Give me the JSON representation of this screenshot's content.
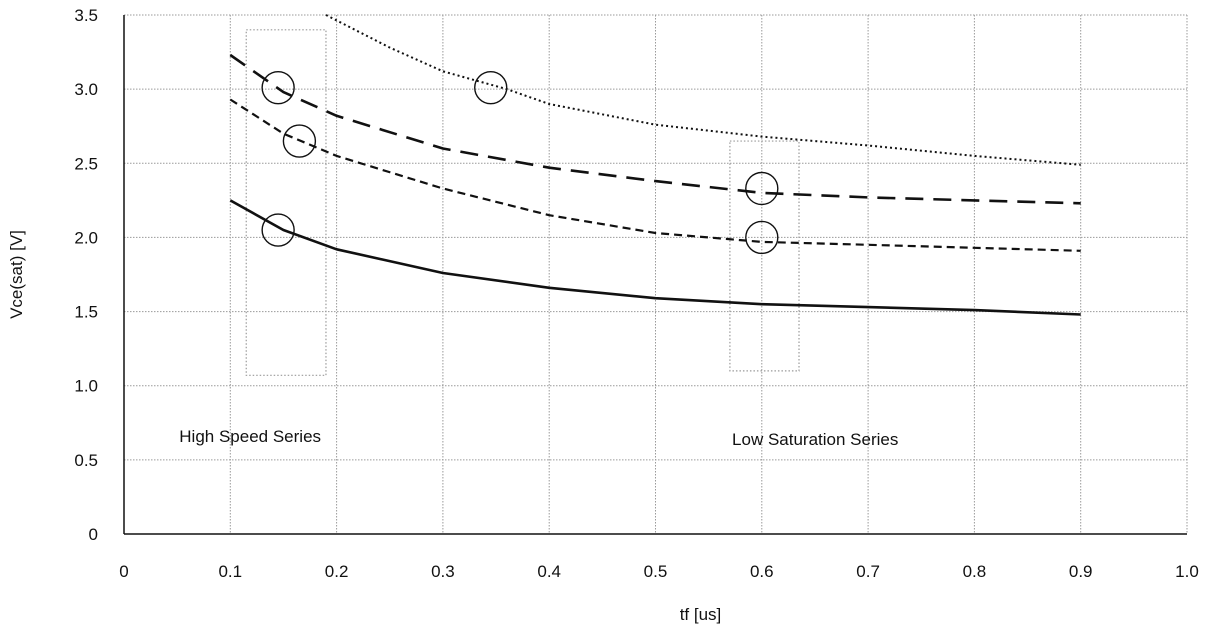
{
  "chart_data": {
    "type": "line",
    "xlabel": "tf [us]",
    "ylabel": "Vce(sat) [V]",
    "xlim": [
      0,
      1.0
    ],
    "ylim": [
      0,
      3.5
    ],
    "x_ticks": [
      "0",
      "0.1",
      "0.2",
      "0.3",
      "0.4",
      "0.5",
      "0.6",
      "0.7",
      "0.8",
      "0.9",
      "1.0"
    ],
    "y_ticks": [
      "0",
      "0.5",
      "1.0",
      "1.5",
      "2.0",
      "2.5",
      "3.0",
      "3.5"
    ],
    "grid": true,
    "series": [
      {
        "style": "dotted",
        "x": [
          0.19,
          0.25,
          0.3,
          0.36,
          0.4,
          0.5,
          0.6,
          0.7,
          0.8,
          0.9
        ],
        "y": [
          3.5,
          3.28,
          3.12,
          3.0,
          2.9,
          2.76,
          2.68,
          2.62,
          2.55,
          2.49
        ]
      },
      {
        "style": "long-dash",
        "x": [
          0.1,
          0.15,
          0.2,
          0.3,
          0.4,
          0.5,
          0.6,
          0.7,
          0.8,
          0.9
        ],
        "y": [
          3.23,
          2.98,
          2.82,
          2.6,
          2.47,
          2.38,
          2.3,
          2.27,
          2.25,
          2.23
        ]
      },
      {
        "style": "short-dash",
        "x": [
          0.1,
          0.15,
          0.2,
          0.3,
          0.4,
          0.5,
          0.6,
          0.7,
          0.8,
          0.9
        ],
        "y": [
          2.93,
          2.7,
          2.55,
          2.33,
          2.15,
          2.03,
          1.97,
          1.95,
          1.93,
          1.91
        ]
      },
      {
        "style": "solid",
        "x": [
          0.1,
          0.15,
          0.2,
          0.3,
          0.4,
          0.5,
          0.6,
          0.7,
          0.8,
          0.9
        ],
        "y": [
          2.25,
          2.05,
          1.92,
          1.76,
          1.66,
          1.59,
          1.55,
          1.53,
          1.51,
          1.48
        ]
      }
    ],
    "markers": [
      {
        "x": 0.145,
        "y": 3.01
      },
      {
        "x": 0.165,
        "y": 2.65
      },
      {
        "x": 0.145,
        "y": 2.05
      },
      {
        "x": 0.345,
        "y": 3.01
      },
      {
        "x": 0.6,
        "y": 2.33
      },
      {
        "x": 0.6,
        "y": 2.0
      }
    ],
    "regions": [
      {
        "x0": 0.115,
        "x1": 0.19,
        "y0": 1.07,
        "y1": 3.4
      },
      {
        "x0": 0.57,
        "x1": 0.635,
        "y0": 1.1,
        "y1": 2.65
      }
    ],
    "annotations": [
      {
        "text": "High Speed Series",
        "x": 0.052,
        "y": 0.62
      },
      {
        "text": "Low Saturation Series",
        "x": 0.572,
        "y": 0.6
      }
    ]
  }
}
